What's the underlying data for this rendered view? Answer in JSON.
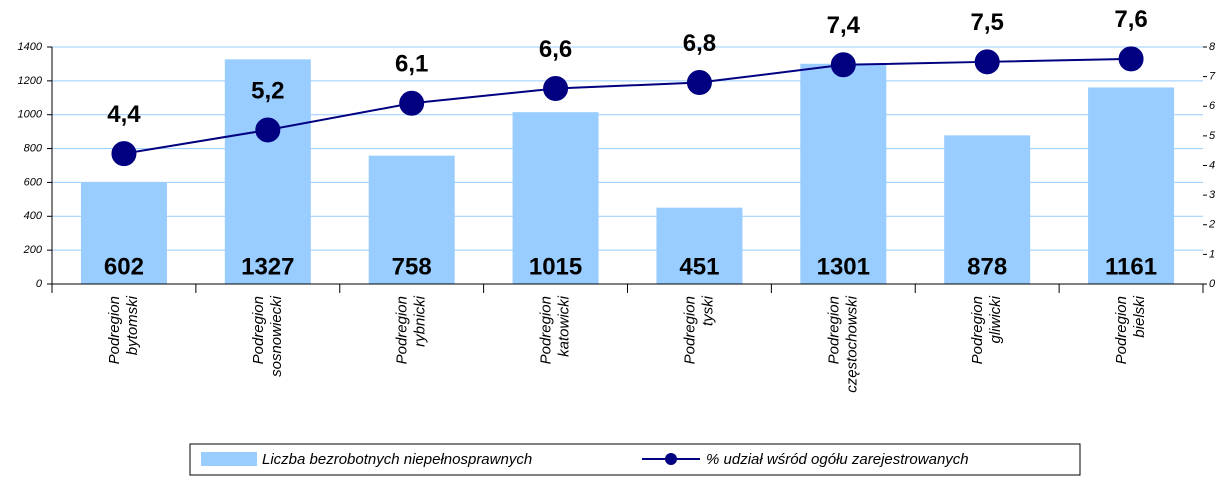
{
  "chart_data": {
    "type": "bar_line",
    "categories": [
      "Podregion\nbytomski",
      "Podregion\nsosnowiecki",
      "Podregion\nrybnicki",
      "Podregion\nkatowicki",
      "Podregion\ntyski",
      "Podregion\nczęstochowski",
      "Podregion\ngliwicki",
      "Podregion\nbielski"
    ],
    "series": [
      {
        "name": "Liczba bezrobotnych niepełnosprawnych",
        "type": "bar",
        "color": "#99ccff",
        "values": [
          602,
          1327,
          758,
          1015,
          451,
          1301,
          878,
          1161
        ]
      },
      {
        "name": "% udział wśród ogółu zarejestrowanych",
        "type": "line",
        "axis": "y2",
        "color": "#000080",
        "values": [
          4.4,
          5.2,
          6.1,
          6.6,
          6.8,
          7.4,
          7.5,
          7.6
        ],
        "value_labels": [
          "4,4",
          "5,2",
          "6,1",
          "6,6",
          "6,8",
          "7,4",
          "7,5",
          "7,6"
        ]
      }
    ],
    "ylim": [
      0,
      1400
    ],
    "yticks": [
      0,
      200,
      400,
      600,
      800,
      1000,
      1200,
      1400
    ],
    "y2lim": [
      0,
      8
    ],
    "y2ticks": [
      0,
      1,
      2,
      3,
      4,
      5,
      6,
      7,
      8
    ],
    "grid": true,
    "legend": "bottom"
  }
}
